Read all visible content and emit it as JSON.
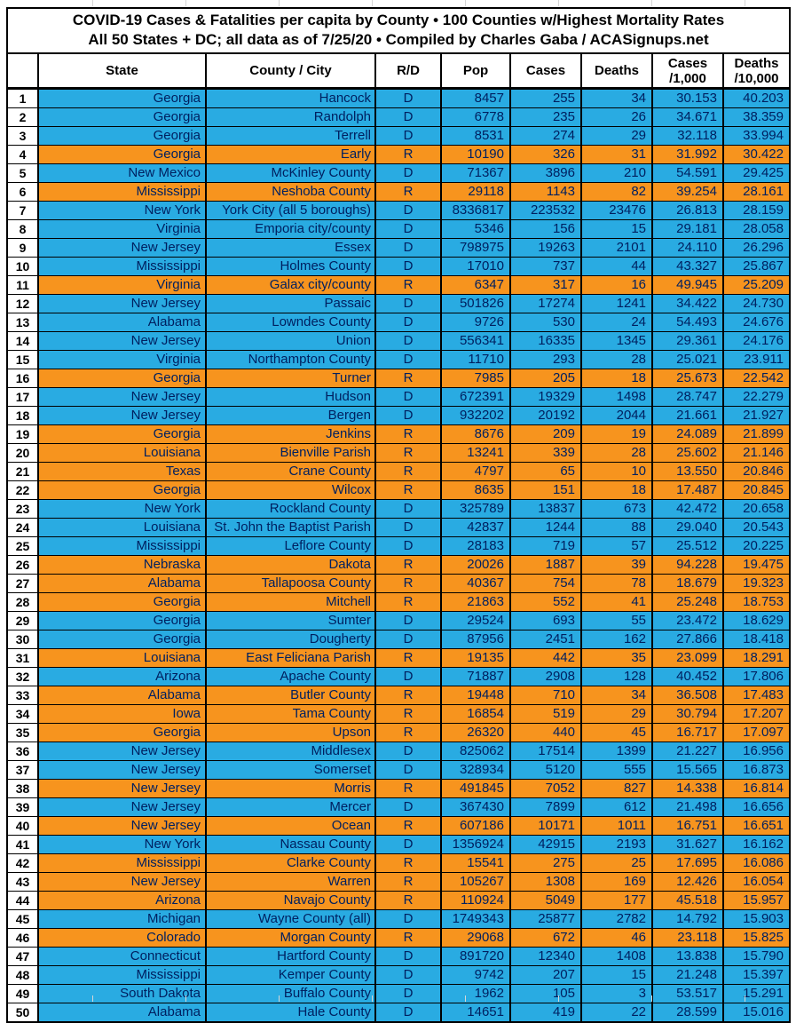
{
  "title": {
    "line1": "COVID-19 Cases & Fatalities per capita by County • 100 Counties w/Highest Mortality Rates",
    "line2": "All 50 States + DC; all data as of 7/25/20 • Compiled by Charles Gaba / ACASignups.net"
  },
  "header": {
    "rank": "",
    "state": "State",
    "county": "County / City",
    "rd": "R/D",
    "pop": "Pop",
    "cases": "Cases",
    "deaths": "Deaths",
    "cases_rate": [
      "Cases",
      "/1,000"
    ],
    "deaths_rate": [
      "Deaths",
      "/10,000"
    ]
  },
  "colors": {
    "dem_row_blue": "#29ABE2",
    "rep_row_orange": "#F7941E",
    "cell_text_navy": "#002060",
    "border_black": "#000000"
  },
  "chart_data": {
    "type": "table",
    "title": "COVID-19 Cases & Fatalities per capita by County • 100 Counties w/Highest Mortality Rates",
    "subtitle": "All 50 States + DC; all data as of 7/25/20 • Compiled by Charles Gaba / ACASignups.net",
    "columns": [
      "Rank",
      "State",
      "County / City",
      "R/D",
      "Pop",
      "Cases",
      "Deaths",
      "Cases /1,000",
      "Deaths /10,000"
    ],
    "row_color_key": {
      "D": "#29ABE2",
      "R": "#F7941E"
    },
    "rows": [
      [
        "1",
        "Georgia",
        "Hancock",
        "D",
        "8457",
        "255",
        "34",
        "30.153",
        "40.203"
      ],
      [
        "2",
        "Georgia",
        "Randolph",
        "D",
        "6778",
        "235",
        "26",
        "34.671",
        "38.359"
      ],
      [
        "3",
        "Georgia",
        "Terrell",
        "D",
        "8531",
        "274",
        "29",
        "32.118",
        "33.994"
      ],
      [
        "4",
        "Georgia",
        "Early",
        "R",
        "10190",
        "326",
        "31",
        "31.992",
        "30.422"
      ],
      [
        "5",
        "New Mexico",
        "McKinley County",
        "D",
        "71367",
        "3896",
        "210",
        "54.591",
        "29.425"
      ],
      [
        "6",
        "Mississippi",
        "Neshoba County",
        "R",
        "29118",
        "1143",
        "82",
        "39.254",
        "28.161"
      ],
      [
        "7",
        "New York",
        "York City (all 5 boroughs)",
        "D",
        "8336817",
        "223532",
        "23476",
        "26.813",
        "28.159"
      ],
      [
        "8",
        "Virginia",
        "Emporia city/county",
        "D",
        "5346",
        "156",
        "15",
        "29.181",
        "28.058"
      ],
      [
        "9",
        "New Jersey",
        "Essex",
        "D",
        "798975",
        "19263",
        "2101",
        "24.110",
        "26.296"
      ],
      [
        "10",
        "Mississippi",
        "Holmes County",
        "D",
        "17010",
        "737",
        "44",
        "43.327",
        "25.867"
      ],
      [
        "11",
        "Virginia",
        "Galax city/county",
        "R",
        "6347",
        "317",
        "16",
        "49.945",
        "25.209"
      ],
      [
        "12",
        "New Jersey",
        "Passaic",
        "D",
        "501826",
        "17274",
        "1241",
        "34.422",
        "24.730"
      ],
      [
        "13",
        "Alabama",
        "Lowndes County",
        "D",
        "9726",
        "530",
        "24",
        "54.493",
        "24.676"
      ],
      [
        "14",
        "New Jersey",
        "Union",
        "D",
        "556341",
        "16335",
        "1345",
        "29.361",
        "24.176"
      ],
      [
        "15",
        "Virginia",
        "Northampton County",
        "D",
        "11710",
        "293",
        "28",
        "25.021",
        "23.911"
      ],
      [
        "16",
        "Georgia",
        "Turner",
        "R",
        "7985",
        "205",
        "18",
        "25.673",
        "22.542"
      ],
      [
        "17",
        "New Jersey",
        "Hudson",
        "D",
        "672391",
        "19329",
        "1498",
        "28.747",
        "22.279"
      ],
      [
        "18",
        "New Jersey",
        "Bergen",
        "D",
        "932202",
        "20192",
        "2044",
        "21.661",
        "21.927"
      ],
      [
        "19",
        "Georgia",
        "Jenkins",
        "R",
        "8676",
        "209",
        "19",
        "24.089",
        "21.899"
      ],
      [
        "20",
        "Louisiana",
        "Bienville Parish",
        "R",
        "13241",
        "339",
        "28",
        "25.602",
        "21.146"
      ],
      [
        "21",
        "Texas",
        "Crane County",
        "R",
        "4797",
        "65",
        "10",
        "13.550",
        "20.846"
      ],
      [
        "22",
        "Georgia",
        "Wilcox",
        "R",
        "8635",
        "151",
        "18",
        "17.487",
        "20.845"
      ],
      [
        "23",
        "New York",
        "Rockland County",
        "D",
        "325789",
        "13837",
        "673",
        "42.472",
        "20.658"
      ],
      [
        "24",
        "Louisiana",
        "St. John the Baptist Parish",
        "D",
        "42837",
        "1244",
        "88",
        "29.040",
        "20.543"
      ],
      [
        "25",
        "Mississippi",
        "Leflore County",
        "D",
        "28183",
        "719",
        "57",
        "25.512",
        "20.225"
      ],
      [
        "26",
        "Nebraska",
        "Dakota",
        "R",
        "20026",
        "1887",
        "39",
        "94.228",
        "19.475"
      ],
      [
        "27",
        "Alabama",
        "Tallapoosa County",
        "R",
        "40367",
        "754",
        "78",
        "18.679",
        "19.323"
      ],
      [
        "28",
        "Georgia",
        "Mitchell",
        "R",
        "21863",
        "552",
        "41",
        "25.248",
        "18.753"
      ],
      [
        "29",
        "Georgia",
        "Sumter",
        "D",
        "29524",
        "693",
        "55",
        "23.472",
        "18.629"
      ],
      [
        "30",
        "Georgia",
        "Dougherty",
        "D",
        "87956",
        "2451",
        "162",
        "27.866",
        "18.418"
      ],
      [
        "31",
        "Louisiana",
        "East Feliciana Parish",
        "R",
        "19135",
        "442",
        "35",
        "23.099",
        "18.291"
      ],
      [
        "32",
        "Arizona",
        "Apache County",
        "D",
        "71887",
        "2908",
        "128",
        "40.452",
        "17.806"
      ],
      [
        "33",
        "Alabama",
        "Butler County",
        "R",
        "19448",
        "710",
        "34",
        "36.508",
        "17.483"
      ],
      [
        "34",
        "Iowa",
        "Tama County",
        "R",
        "16854",
        "519",
        "29",
        "30.794",
        "17.207"
      ],
      [
        "35",
        "Georgia",
        "Upson",
        "R",
        "26320",
        "440",
        "45",
        "16.717",
        "17.097"
      ],
      [
        "36",
        "New Jersey",
        "Middlesex",
        "D",
        "825062",
        "17514",
        "1399",
        "21.227",
        "16.956"
      ],
      [
        "37",
        "New Jersey",
        "Somerset",
        "D",
        "328934",
        "5120",
        "555",
        "15.565",
        "16.873"
      ],
      [
        "38",
        "New Jersey",
        "Morris",
        "R",
        "491845",
        "7052",
        "827",
        "14.338",
        "16.814"
      ],
      [
        "39",
        "New Jersey",
        "Mercer",
        "D",
        "367430",
        "7899",
        "612",
        "21.498",
        "16.656"
      ],
      [
        "40",
        "New Jersey",
        "Ocean",
        "R",
        "607186",
        "10171",
        "1011",
        "16.751",
        "16.651"
      ],
      [
        "41",
        "New York",
        "Nassau County",
        "D",
        "1356924",
        "42915",
        "2193",
        "31.627",
        "16.162"
      ],
      [
        "42",
        "Mississippi",
        "Clarke County",
        "R",
        "15541",
        "275",
        "25",
        "17.695",
        "16.086"
      ],
      [
        "43",
        "New Jersey",
        "Warren",
        "R",
        "105267",
        "1308",
        "169",
        "12.426",
        "16.054"
      ],
      [
        "44",
        "Arizona",
        "Navajo County",
        "R",
        "110924",
        "5049",
        "177",
        "45.518",
        "15.957"
      ],
      [
        "45",
        "Michigan",
        "Wayne County (all)",
        "D",
        "1749343",
        "25877",
        "2782",
        "14.792",
        "15.903"
      ],
      [
        "46",
        "Colorado",
        "Morgan County",
        "R",
        "29068",
        "672",
        "46",
        "23.118",
        "15.825"
      ],
      [
        "47",
        "Connecticut",
        "Hartford County",
        "D",
        "891720",
        "12340",
        "1408",
        "13.838",
        "15.790"
      ],
      [
        "48",
        "Mississippi",
        "Kemper County",
        "D",
        "9742",
        "207",
        "15",
        "21.248",
        "15.397"
      ],
      [
        "49",
        "South Dakota",
        "Buffalo County",
        "D",
        "1962",
        "105",
        "3",
        "53.517",
        "15.291"
      ],
      [
        "50",
        "Alabama",
        "Hale County",
        "D",
        "14651",
        "419",
        "22",
        "28.599",
        "15.016"
      ]
    ]
  }
}
